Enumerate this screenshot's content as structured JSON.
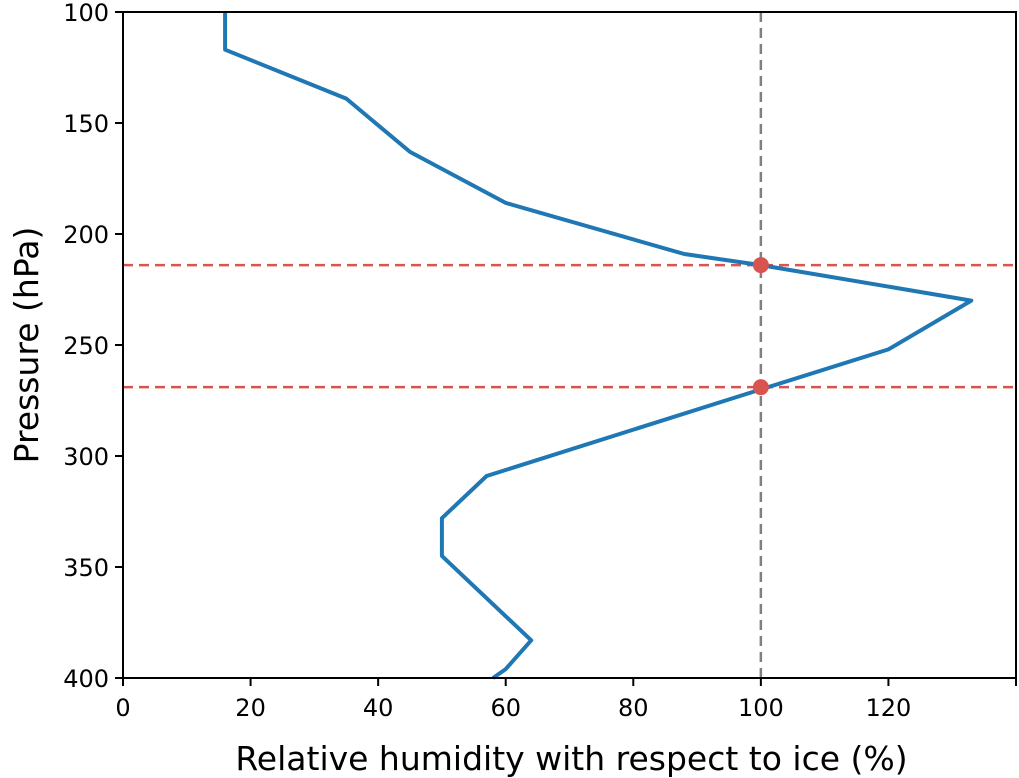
{
  "chart_data": {
    "type": "line",
    "title": "",
    "xlabel": "Relative humidity with respect to ice (%)",
    "ylabel": "Pressure (hPa)",
    "xlim": [
      0,
      140
    ],
    "ylim": [
      400,
      100
    ],
    "y_inverted": true,
    "x_ticks": [
      0,
      20,
      40,
      60,
      80,
      100,
      120
    ],
    "y_ticks": [
      100,
      150,
      200,
      250,
      300,
      350,
      400
    ],
    "grid": false,
    "series": [
      {
        "color": "#1f77b4",
        "x": [
          16,
          16,
          35,
          45,
          60,
          88,
          100,
          133,
          120,
          100,
          57,
          50,
          50,
          64,
          60,
          58
        ],
        "y": [
          100,
          117,
          139,
          163,
          186,
          209,
          214,
          230,
          252,
          270,
          309,
          328,
          345,
          383,
          396,
          400
        ]
      }
    ],
    "reference_lines": [
      {
        "orientation": "vertical",
        "value": 100,
        "color": "#808080",
        "style": "dashed"
      },
      {
        "orientation": "horizontal",
        "value": 214,
        "color": "#d9534f",
        "style": "dashed"
      },
      {
        "orientation": "horizontal",
        "value": 269,
        "color": "#d9534f",
        "style": "dashed"
      }
    ],
    "markers": [
      {
        "x": 100,
        "y": 214,
        "color": "#d9534f"
      },
      {
        "x": 100,
        "y": 269,
        "color": "#d9534f"
      }
    ]
  }
}
